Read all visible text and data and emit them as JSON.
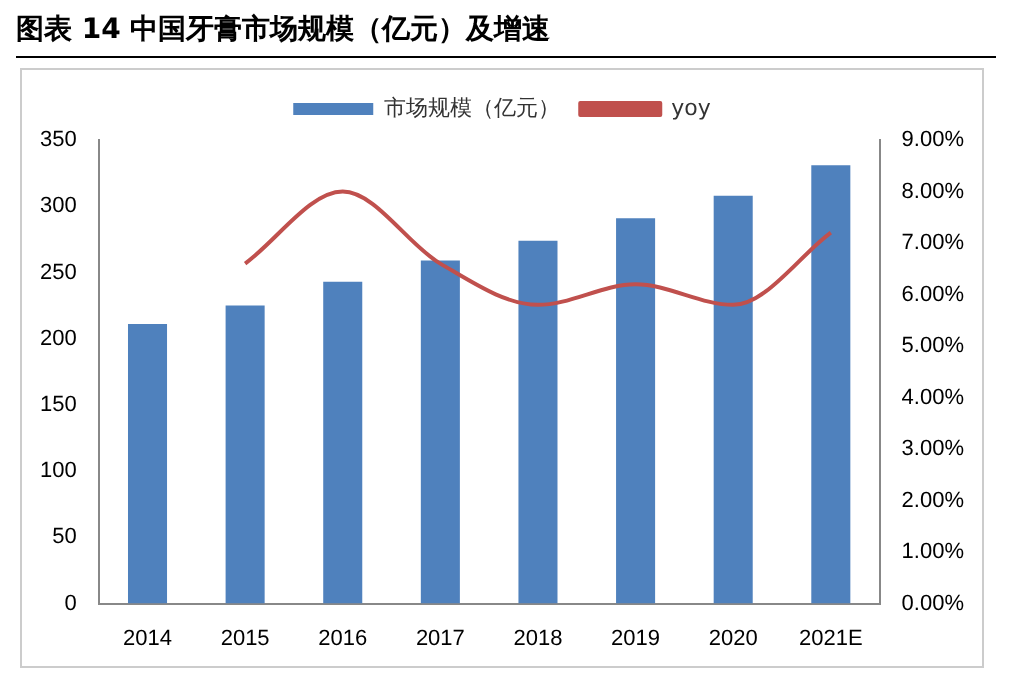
{
  "chart_data": {
    "type": "bar",
    "title": "图表 14  中国牙膏市场规模（亿元）及增速",
    "categories": [
      "2014",
      "2015",
      "2016",
      "2017",
      "2018",
      "2019",
      "2020",
      "2021E"
    ],
    "series": [
      {
        "name": "市场规模（亿元）",
        "color": "#4f81bd",
        "values": [
          211,
          225,
          243,
          259,
          274,
          291,
          308,
          331
        ]
      },
      {
        "name": "yoy",
        "type": "line",
        "axis": "y2",
        "color": "#c0504d",
        "values": [
          null,
          6.6,
          8.0,
          6.6,
          5.8,
          6.2,
          5.8,
          7.2
        ]
      }
    ],
    "ylim": [
      0,
      350
    ],
    "yticks": [
      0,
      50,
      100,
      150,
      200,
      250,
      300,
      350
    ],
    "y2lim": [
      0,
      9
    ],
    "y2ticks": [
      {
        "value": 0,
        "label": "0.00%"
      },
      {
        "value": 1,
        "label": "1.00%"
      },
      {
        "value": 2,
        "label": "2.00%"
      },
      {
        "value": 3,
        "label": "3.00%"
      },
      {
        "value": 4,
        "label": "4.00%"
      },
      {
        "value": 5,
        "label": "5.00%"
      },
      {
        "value": 6,
        "label": "6.00%"
      },
      {
        "value": 7,
        "label": "7.00%"
      },
      {
        "value": 8,
        "label": "8.00%"
      },
      {
        "value": 9,
        "label": "9.00%"
      }
    ],
    "legend": "top",
    "grid": false,
    "marker": "none"
  }
}
